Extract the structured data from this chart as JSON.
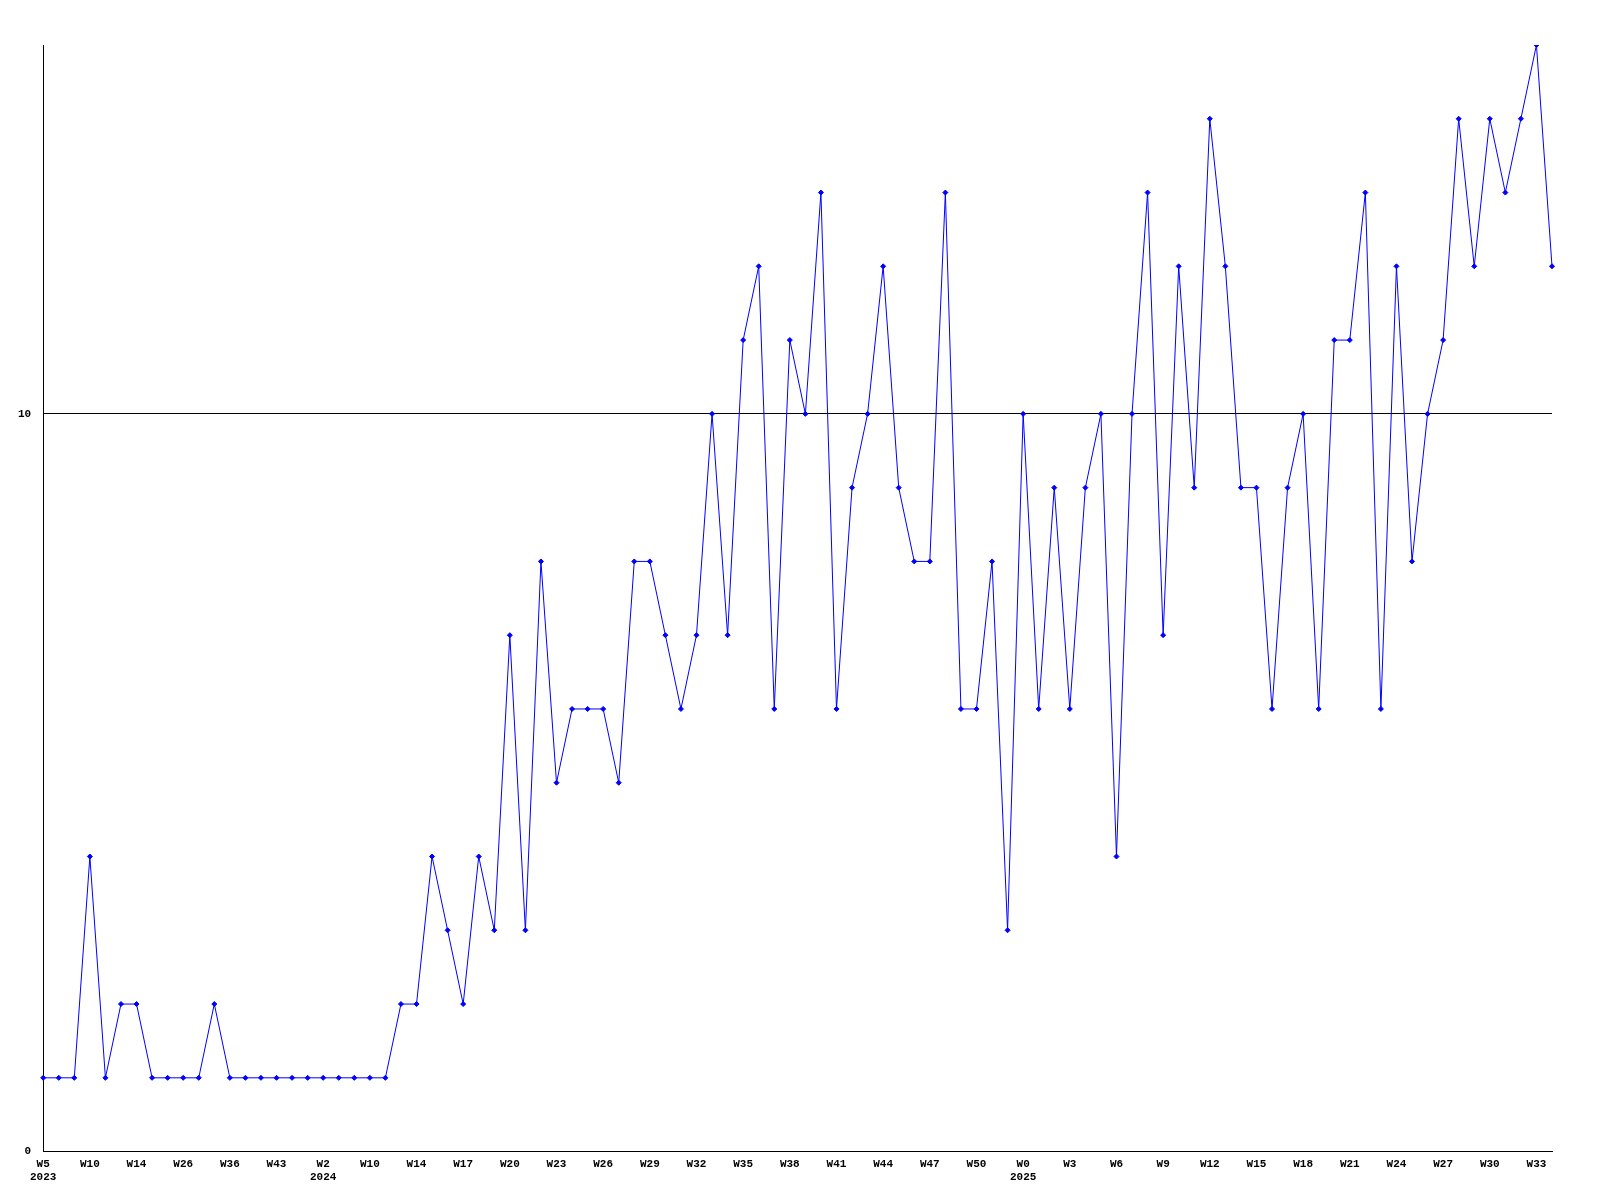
{
  "chart_data": {
    "type": "line",
    "categories": [
      "W5\n2023",
      null,
      null,
      "W10",
      null,
      null,
      "W14",
      null,
      null,
      "W26",
      null,
      null,
      "W36",
      null,
      null,
      "W43",
      null,
      null,
      "W2\n2024",
      null,
      null,
      "W10",
      null,
      null,
      "W14",
      null,
      null,
      "W17",
      null,
      null,
      "W20",
      null,
      null,
      "W23",
      null,
      null,
      "W26",
      null,
      null,
      "W29",
      null,
      null,
      "W32",
      null,
      null,
      "W35",
      null,
      null,
      "W38",
      null,
      null,
      "W41",
      null,
      null,
      "W44",
      null,
      null,
      "W47",
      null,
      null,
      "W50",
      null,
      null,
      "W0\n2025",
      null,
      null,
      "W3",
      null,
      null,
      "W6",
      null,
      null,
      "W9",
      null,
      null,
      "W12",
      null,
      null,
      "W15",
      null,
      null,
      "W18",
      null,
      null,
      "W21",
      null,
      null,
      "W24",
      null,
      null,
      "W27",
      null,
      null,
      "W30",
      null,
      null,
      "W33",
      null
    ],
    "series": [
      {
        "color": "#0000ff",
        "values": [
          1,
          1,
          1,
          4,
          1,
          2,
          2,
          1,
          1,
          1,
          1,
          2,
          1,
          1,
          1,
          1,
          1,
          1,
          1,
          1,
          1,
          1,
          1,
          2,
          2,
          4,
          3,
          2,
          4,
          3,
          7,
          3,
          8,
          5,
          6,
          6,
          6,
          5,
          8,
          8,
          7,
          6,
          7,
          10,
          7,
          11,
          12,
          6,
          11,
          10,
          13,
          6,
          9,
          10,
          12,
          9,
          8,
          8,
          13,
          6,
          6,
          8,
          3,
          10,
          6,
          9,
          6,
          9,
          10,
          4,
          10,
          13,
          7,
          12,
          9,
          14,
          12,
          9,
          9,
          6,
          9,
          10,
          6,
          11,
          11,
          13,
          6,
          12,
          8,
          10,
          11,
          14,
          12,
          14,
          13,
          14,
          15,
          12
        ]
      }
    ],
    "ylim": [
      0,
      15
    ],
    "yticks": [
      0,
      10
    ],
    "grid": "y",
    "legend": false,
    "marker": "diamond",
    "line_style": "solid"
  }
}
